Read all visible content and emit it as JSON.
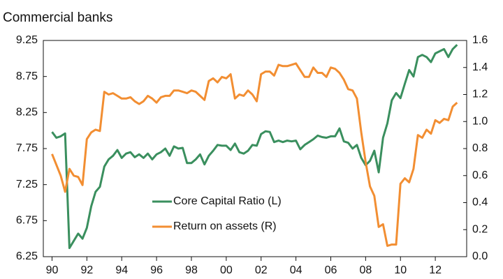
{
  "chart_data": {
    "type": "line",
    "subtitle": "Commercial banks",
    "x": [
      1990,
      1990.25,
      1990.5,
      1990.75,
      1991,
      1991.25,
      1991.5,
      1991.75,
      1992,
      1992.25,
      1992.5,
      1992.75,
      1993,
      1993.25,
      1993.5,
      1993.75,
      1994,
      1994.25,
      1994.5,
      1994.75,
      1995,
      1995.25,
      1995.5,
      1995.75,
      1996,
      1996.25,
      1996.5,
      1996.75,
      1997,
      1997.25,
      1997.5,
      1997.75,
      1998,
      1998.25,
      1998.5,
      1998.75,
      1999,
      1999.25,
      1999.5,
      1999.75,
      2000,
      2000.25,
      2000.5,
      2000.75,
      2001,
      2001.25,
      2001.5,
      2001.75,
      2002,
      2002.25,
      2002.5,
      2002.75,
      2003,
      2003.25,
      2003.5,
      2003.75,
      2004,
      2004.25,
      2004.5,
      2004.75,
      2005,
      2005.25,
      2005.5,
      2005.75,
      2006,
      2006.25,
      2006.5,
      2006.75,
      2007,
      2007.25,
      2007.5,
      2007.75,
      2008,
      2008.25,
      2008.5,
      2008.75,
      2009,
      2009.25,
      2009.5,
      2009.75,
      2010,
      2010.25,
      2010.5,
      2010.75,
      2011,
      2011.25,
      2011.5,
      2011.75,
      2012,
      2012.25,
      2012.5,
      2012.75,
      2013,
      2013.25
    ],
    "series": [
      {
        "name": "Core Capital Ratio (L)",
        "color": "#3a8f5e",
        "axis": "y",
        "values": [
          7.98,
          7.9,
          7.92,
          7.96,
          6.37,
          6.47,
          6.57,
          6.5,
          6.65,
          6.95,
          7.15,
          7.22,
          7.5,
          7.6,
          7.65,
          7.73,
          7.62,
          7.68,
          7.7,
          7.63,
          7.67,
          7.62,
          7.68,
          7.6,
          7.67,
          7.7,
          7.75,
          7.65,
          7.78,
          7.75,
          7.76,
          7.55,
          7.55,
          7.6,
          7.67,
          7.53,
          7.65,
          7.72,
          7.8,
          7.79,
          7.79,
          7.73,
          7.82,
          7.7,
          7.68,
          7.72,
          7.8,
          7.79,
          7.95,
          7.99,
          7.98,
          7.84,
          7.86,
          7.84,
          7.86,
          7.85,
          7.86,
          7.74,
          7.8,
          7.84,
          7.88,
          7.93,
          7.91,
          7.9,
          7.92,
          7.92,
          8.03,
          7.85,
          7.83,
          7.75,
          7.8,
          7.62,
          7.52,
          7.58,
          7.72,
          7.42,
          7.9,
          8.1,
          8.42,
          8.52,
          8.45,
          8.65,
          8.84,
          8.75,
          9.02,
          9.05,
          9.02,
          8.95,
          9.07,
          9.1,
          9.13,
          9.02,
          9.13,
          9.19
        ]
      },
      {
        "name": "Return on assets (R)",
        "color": "#f28e32",
        "axis": "y2",
        "values": [
          0.76,
          0.68,
          0.6,
          0.48,
          0.65,
          0.6,
          0.59,
          0.53,
          0.87,
          0.92,
          0.94,
          0.93,
          1.22,
          1.2,
          1.21,
          1.19,
          1.17,
          1.17,
          1.18,
          1.15,
          1.13,
          1.15,
          1.19,
          1.17,
          1.14,
          1.18,
          1.19,
          1.19,
          1.23,
          1.23,
          1.22,
          1.21,
          1.23,
          1.22,
          1.19,
          1.16,
          1.3,
          1.32,
          1.29,
          1.33,
          1.32,
          1.35,
          1.17,
          1.2,
          1.19,
          1.23,
          1.2,
          1.15,
          1.35,
          1.37,
          1.37,
          1.34,
          1.42,
          1.41,
          1.41,
          1.42,
          1.43,
          1.38,
          1.33,
          1.33,
          1.4,
          1.36,
          1.36,
          1.33,
          1.4,
          1.39,
          1.36,
          1.31,
          1.24,
          1.23,
          1.17,
          0.92,
          0.7,
          0.52,
          0.45,
          0.22,
          0.24,
          0.08,
          0.09,
          0.09,
          0.54,
          0.58,
          0.55,
          0.65,
          0.9,
          0.88,
          0.94,
          0.91,
          1.01,
          0.99,
          1.02,
          1.01,
          1.11,
          1.14
        ]
      }
    ],
    "xlim": [
      1989.5,
      2013.8
    ],
    "xticks": [
      {
        "value": 1990,
        "label": "90"
      },
      {
        "value": 1992,
        "label": "92"
      },
      {
        "value": 1994,
        "label": "94"
      },
      {
        "value": 1996,
        "label": "96"
      },
      {
        "value": 1998,
        "label": "98"
      },
      {
        "value": 2000,
        "label": "00"
      },
      {
        "value": 2002,
        "label": "02"
      },
      {
        "value": 2004,
        "label": "04"
      },
      {
        "value": 2006,
        "label": "06"
      },
      {
        "value": 2008,
        "label": "08"
      },
      {
        "value": 2010,
        "label": "10"
      },
      {
        "value": 2012,
        "label": "12"
      }
    ],
    "ylim": [
      6.25,
      9.25
    ],
    "yticks": [
      6.25,
      6.75,
      7.25,
      7.75,
      8.25,
      8.75,
      9.25
    ],
    "y2lim": [
      0,
      1.6
    ],
    "y2ticks": [
      {
        "value": 0,
        "label": "0.0"
      },
      0.2,
      0.4,
      0.6,
      0.8,
      {
        "value": 1,
        "label": "1.0"
      },
      1.2,
      1.4,
      1.6
    ]
  }
}
